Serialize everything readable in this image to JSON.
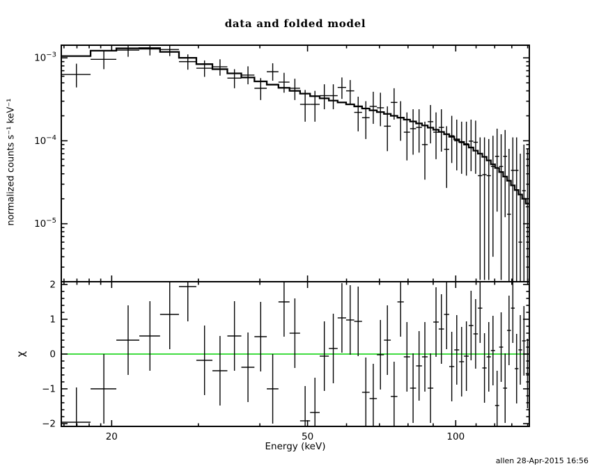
{
  "page": {
    "footer": "allen 28-Apr-2015 16:56",
    "background": "#ffffff",
    "frame_color": "#000000"
  },
  "chart_data": [
    {
      "panel": "top",
      "type": "scatter",
      "title": "data and folded model",
      "xlabel": "Energy (keV)",
      "ylabel": "normalized counts s⁻¹ keV⁻¹",
      "x_scale": "log",
      "y_scale": "log",
      "xlim": [
        15.8,
        141.1
      ],
      "ylim": [
        2e-06,
        0.00142
      ],
      "grid": false,
      "legend": "none",
      "bin_half_width": 1.16,
      "x_major_ticks": [
        {
          "v": 20,
          "label": "20"
        },
        {
          "v": 50,
          "label": "50"
        },
        {
          "v": 100,
          "label": "100"
        }
      ],
      "x_minor_ticks": [
        16,
        17,
        18,
        19,
        30,
        40,
        60,
        70,
        80,
        90,
        110,
        120,
        130,
        140
      ],
      "y_major_ticks": [
        {
          "v": 0.001,
          "base": "10",
          "exp": "−3"
        },
        {
          "v": 0.0001,
          "base": "10",
          "exp": "−4"
        },
        {
          "v": 1e-05,
          "base": "10",
          "exp": "−5"
        }
      ],
      "series": [
        {
          "name": "data",
          "style": "errorbars",
          "color": "#000000",
          "points": [
            [
              16.96,
              0.00063,
              0.00044,
              0.00085
            ],
            [
              19.28,
              0.00096,
              0.00073,
              0.0012
            ],
            [
              21.6,
              0.00124,
              0.00103,
              0.00142
            ],
            [
              23.92,
              0.00128,
              0.00107,
              0.00142
            ],
            [
              26.24,
              0.00126,
              0.00105,
              0.00142
            ],
            [
              28.56,
              0.0009,
              0.00072,
              0.0011
            ],
            [
              30.88,
              0.00075,
              0.00059,
              0.00093
            ],
            [
              33.2,
              0.00078,
              0.00061,
              0.00096
            ],
            [
              35.52,
              0.00057,
              0.00043,
              0.00073
            ],
            [
              37.84,
              0.00062,
              0.00048,
              0.00079
            ],
            [
              40.16,
              0.00043,
              0.00031,
              0.00057
            ],
            [
              42.48,
              0.00068,
              0.00053,
              0.00086
            ],
            [
              44.8,
              0.00051,
              0.00038,
              0.00066
            ],
            [
              47.12,
              0.00043,
              0.00031,
              0.00056
            ],
            [
              49.44,
              0.000275,
              0.00017,
              0.00041
            ],
            [
              51.76,
              0.000275,
              0.00017,
              0.0004
            ],
            [
              54.08,
              0.00035,
              0.00024,
              0.00048
            ],
            [
              56.4,
              0.00035,
              0.00024,
              0.00048
            ],
            [
              58.72,
              0.00044,
              0.00032,
              0.00058
            ],
            [
              61.04,
              0.0004,
              0.00028,
              0.00054
            ],
            [
              63.36,
              0.00022,
              0.00013,
              0.00034
            ],
            [
              65.68,
              0.00019,
              0.000105,
              0.0003
            ],
            [
              68.0,
              0.00026,
              0.00016,
              0.00039
            ],
            [
              70.32,
              0.00025,
              0.00015,
              0.00038
            ],
            [
              72.64,
              0.00015,
              7.5e-05,
              0.00026
            ],
            [
              74.96,
              0.00029,
              0.00018,
              0.00043
            ],
            [
              77.28,
              0.00019,
              0.0001,
              0.0003
            ],
            [
              79.6,
              0.000127,
              5.8e-05,
              0.00022
            ],
            [
              81.92,
              0.00014,
              6.8e-05,
              0.00024
            ],
            [
              84.24,
              0.000145,
              7.2e-05,
              0.00024
            ],
            [
              86.56,
              9e-05,
              3.4e-05,
              0.00017
            ],
            [
              88.88,
              0.00017,
              9.3e-05,
              0.00027
            ],
            [
              91.2,
              0.000127,
              6e-05,
              0.00022
            ],
            [
              93.52,
              0.000145,
              7.4e-05,
              0.00024
            ],
            [
              95.84,
              7.9e-05,
              2.7e-05,
              0.00015
            ],
            [
              98.16,
              0.000115,
              5.4e-05,
              0.0002
            ],
            [
              100.48,
              0.0001,
              4.4e-05,
              0.00018
            ],
            [
              102.8,
              9.5e-05,
              4e-05,
              0.00017
            ],
            [
              105.12,
              9.2e-05,
              3.8e-05,
              0.00017
            ],
            [
              107.44,
              9.9e-05,
              4.3e-05,
              0.00018
            ],
            [
              109.76,
              9.6e-05,
              4e-05,
              0.000175
            ],
            [
              112.08,
              3.8e-05,
              2.1e-06,
              0.00011
            ],
            [
              114.4,
              3.9e-05,
              2.1e-06,
              0.00011
            ],
            [
              116.72,
              3.8e-05,
              2.1e-06,
              0.000105
            ],
            [
              119.04,
              4.9e-05,
              4e-06,
              0.000115
            ],
            [
              121.36,
              6.5e-05,
              1.4e-05,
              0.00014
            ],
            [
              123.68,
              4.9e-05,
              2.1e-06,
              0.00012
            ],
            [
              126.0,
              6.5e-05,
              1.2e-05,
              0.000135
            ],
            [
              128.32,
              1.3e-05,
              2e-06,
              8e-05
            ],
            [
              130.64,
              4.4e-05,
              2e-06,
              0.00011
            ],
            [
              132.96,
              4.4e-05,
              2e-06,
              0.00011
            ],
            [
              135.28,
              6e-06,
              2e-06,
              7e-05
            ],
            [
              137.6,
              2.5e-05,
              2e-06,
              9e-05
            ],
            [
              139.92,
              1.6e-05,
              2e-06,
              8e-05
            ]
          ]
        },
        {
          "name": "folded model",
          "style": "step-histogram",
          "color": "#000000",
          "values": [
            0.00105,
            0.00122,
            0.0013,
            0.00131,
            0.00118,
            0.001,
            0.00084,
            0.00073,
            0.00065,
            0.00058,
            0.00052,
            0.000475,
            0.000435,
            0.0004,
            0.00037,
            0.000345,
            0.000325,
            0.000305,
            0.00029,
            0.000275,
            0.00026,
            0.000245,
            0.000233,
            0.000222,
            0.000211,
            0.0002,
            0.00019,
            0.00018,
            0.000171,
            0.000162,
            0.000153,
            0.000144,
            0.000136,
            0.000128,
            0.00012,
            0.000112,
            0.000104,
            9.7e-05,
            9e-05,
            8.3e-05,
            7.6e-05,
            7e-05,
            6.4e-05,
            5.8e-05,
            5.2e-05,
            4.7e-05,
            4.2e-05,
            3.7e-05,
            3.3e-05,
            2.9e-05,
            2.55e-05,
            2.25e-05,
            2e-05,
            1.75e-05
          ]
        }
      ]
    },
    {
      "panel": "bottom",
      "type": "scatter",
      "title": "",
      "xlabel": "Energy (keV)",
      "ylabel": "χ",
      "x_scale": "log",
      "y_scale": "linear",
      "xlim": [
        15.8,
        141.1
      ],
      "ylim": [
        -2.08,
        2.08
      ],
      "grid": false,
      "legend": "none",
      "bin_half_width": 1.16,
      "chi_error": 1.0,
      "zero_line_color": "#00d000",
      "y_major_ticks": [
        {
          "v": 2,
          "label": "2"
        },
        {
          "v": 1,
          "label": "1"
        },
        {
          "v": 0,
          "label": "0"
        },
        {
          "v": -1,
          "label": "−1"
        },
        {
          "v": -2,
          "label": "−2"
        }
      ],
      "y_minor_step": 0.2,
      "points": [
        [
          16.96,
          -1.96
        ],
        [
          19.28,
          -1.0
        ],
        [
          21.6,
          0.4
        ],
        [
          23.92,
          0.52
        ],
        [
          26.24,
          1.14
        ],
        [
          28.56,
          1.94
        ],
        [
          30.88,
          -0.18
        ],
        [
          33.2,
          -0.48
        ],
        [
          35.52,
          0.52
        ],
        [
          37.84,
          -0.38
        ],
        [
          40.16,
          0.5
        ],
        [
          42.48,
          -1.0
        ],
        [
          44.8,
          1.5
        ],
        [
          47.12,
          0.6
        ],
        [
          49.44,
          -1.92
        ],
        [
          51.76,
          -1.68
        ],
        [
          54.08,
          -0.06
        ],
        [
          56.4,
          0.16
        ],
        [
          58.72,
          1.04
        ],
        [
          61.04,
          0.98
        ],
        [
          63.36,
          0.94
        ],
        [
          65.68,
          -1.1
        ],
        [
          68.0,
          -1.28
        ],
        [
          70.32,
          -0.02
        ],
        [
          72.64,
          0.4
        ],
        [
          74.96,
          -1.22
        ],
        [
          77.28,
          1.5
        ],
        [
          79.6,
          -0.08
        ],
        [
          81.92,
          -0.98
        ],
        [
          84.24,
          -0.34
        ],
        [
          86.56,
          -0.08
        ],
        [
          88.88,
          -0.98
        ],
        [
          91.2,
          0.92
        ],
        [
          93.52,
          0.72
        ],
        [
          95.84,
          1.14
        ],
        [
          98.16,
          -0.36
        ],
        [
          100.48,
          0.12
        ],
        [
          102.8,
          -0.22
        ],
        [
          105.12,
          -0.06
        ],
        [
          107.44,
          0.82
        ],
        [
          109.76,
          0.58
        ],
        [
          112.08,
          1.32
        ],
        [
          114.4,
          -0.4
        ],
        [
          116.72,
          -0.08
        ],
        [
          119.04,
          0.1
        ],
        [
          121.36,
          -1.48
        ],
        [
          123.68,
          0.2
        ],
        [
          126.0,
          -0.98
        ],
        [
          128.32,
          0.68
        ],
        [
          130.64,
          1.32
        ],
        [
          132.96,
          -0.42
        ],
        [
          135.28,
          0.12
        ],
        [
          137.6,
          0.38
        ],
        [
          139.92,
          -0.56
        ]
      ]
    }
  ]
}
